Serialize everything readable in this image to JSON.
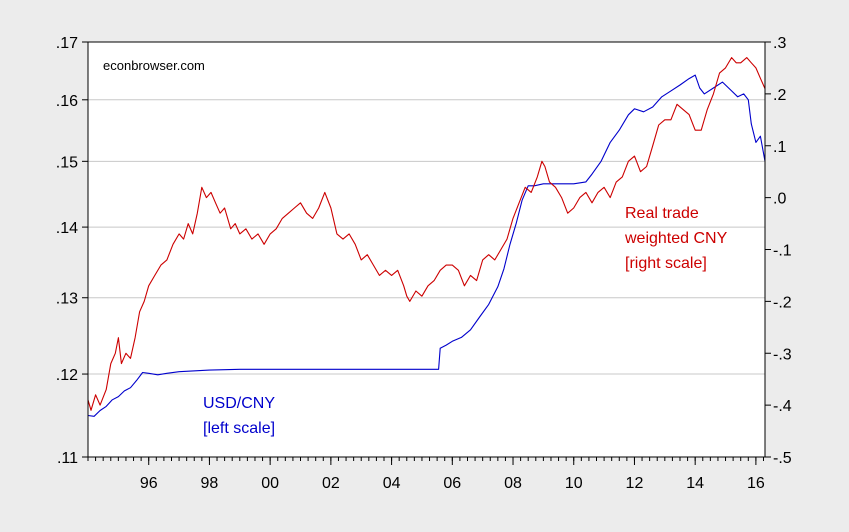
{
  "chart_data": {
    "type": "line",
    "watermark": "econbrowser.com",
    "x_range": [
      1994.0,
      2016.3
    ],
    "x_ticks": [
      {
        "value": 1996,
        "label": "96"
      },
      {
        "value": 1998,
        "label": "98"
      },
      {
        "value": 2000,
        "label": "00"
      },
      {
        "value": 2002,
        "label": "02"
      },
      {
        "value": 2004,
        "label": "04"
      },
      {
        "value": 2006,
        "label": "06"
      },
      {
        "value": 2008,
        "label": "08"
      },
      {
        "value": 2010,
        "label": "10"
      },
      {
        "value": 2012,
        "label": "12"
      },
      {
        "value": 2014,
        "label": "14"
      },
      {
        "value": 2016,
        "label": "16"
      }
    ],
    "left_axis": {
      "scale": "log",
      "range": [
        0.11,
        0.17
      ],
      "ticks": [
        {
          "value": 0.11,
          "label": ".11"
        },
        {
          "value": 0.12,
          "label": ".12"
        },
        {
          "value": 0.13,
          "label": ".13"
        },
        {
          "value": 0.14,
          "label": ".14"
        },
        {
          "value": 0.15,
          "label": ".15"
        },
        {
          "value": 0.16,
          "label": ".16"
        },
        {
          "value": 0.17,
          "label": ".17"
        }
      ]
    },
    "right_axis": {
      "scale": "linear",
      "range": [
        -0.5,
        0.3
      ],
      "ticks": [
        {
          "value": 0.3,
          "label": ".3"
        },
        {
          "value": 0.2,
          "label": ".2"
        },
        {
          "value": 0.1,
          "label": ".1"
        },
        {
          "value": 0.0,
          "label": ".0"
        },
        {
          "value": -0.1,
          "label": "-.1"
        },
        {
          "value": -0.2,
          "label": "-.2"
        },
        {
          "value": -0.3,
          "label": "-.3"
        },
        {
          "value": -0.4,
          "label": "-.4"
        },
        {
          "value": -0.5,
          "label": "-.5"
        }
      ]
    },
    "grid": true,
    "series": [
      {
        "name": "USD/CNY",
        "annotation": [
          "USD/CNY",
          "[left scale]"
        ],
        "axis": "left",
        "color": "#0000cc",
        "points": [
          [
            1994.0,
            0.1149
          ],
          [
            1994.2,
            0.1148
          ],
          [
            1994.4,
            0.1155
          ],
          [
            1994.6,
            0.116
          ],
          [
            1994.8,
            0.1168
          ],
          [
            1995.0,
            0.1172
          ],
          [
            1995.2,
            0.1179
          ],
          [
            1995.4,
            0.1183
          ],
          [
            1995.6,
            0.1192
          ],
          [
            1995.8,
            0.1202
          ],
          [
            1996.0,
            0.1201
          ],
          [
            1996.3,
            0.1199
          ],
          [
            1996.6,
            0.1201
          ],
          [
            1997.0,
            0.1203
          ],
          [
            1998.0,
            0.1205
          ],
          [
            1999.0,
            0.1206
          ],
          [
            2000.0,
            0.1206
          ],
          [
            2001.0,
            0.1206
          ],
          [
            2002.0,
            0.1206
          ],
          [
            2003.0,
            0.1206
          ],
          [
            2004.0,
            0.1206
          ],
          [
            2005.0,
            0.1206
          ],
          [
            2005.55,
            0.1206
          ],
          [
            2005.6,
            0.1233
          ],
          [
            2005.8,
            0.1237
          ],
          [
            2006.0,
            0.1242
          ],
          [
            2006.3,
            0.1247
          ],
          [
            2006.6,
            0.1257
          ],
          [
            2006.9,
            0.1274
          ],
          [
            2007.2,
            0.1291
          ],
          [
            2007.5,
            0.1315
          ],
          [
            2007.7,
            0.134
          ],
          [
            2007.9,
            0.1375
          ],
          [
            2008.1,
            0.1405
          ],
          [
            2008.3,
            0.144
          ],
          [
            2008.5,
            0.1462
          ],
          [
            2008.7,
            0.1462
          ],
          [
            2009.0,
            0.1465
          ],
          [
            2010.0,
            0.1465
          ],
          [
            2010.4,
            0.1468
          ],
          [
            2010.6,
            0.148
          ],
          [
            2010.9,
            0.15
          ],
          [
            2011.2,
            0.153
          ],
          [
            2011.5,
            0.155
          ],
          [
            2011.8,
            0.1575
          ],
          [
            2012.0,
            0.1585
          ],
          [
            2012.3,
            0.158
          ],
          [
            2012.6,
            0.1588
          ],
          [
            2012.9,
            0.1605
          ],
          [
            2013.2,
            0.1615
          ],
          [
            2013.5,
            0.1625
          ],
          [
            2013.8,
            0.1636
          ],
          [
            2014.0,
            0.1642
          ],
          [
            2014.15,
            0.162
          ],
          [
            2014.3,
            0.161
          ],
          [
            2014.6,
            0.162
          ],
          [
            2014.9,
            0.163
          ],
          [
            2015.2,
            0.1615
          ],
          [
            2015.4,
            0.1605
          ],
          [
            2015.6,
            0.161
          ],
          [
            2015.75,
            0.16
          ],
          [
            2015.85,
            0.156
          ],
          [
            2016.0,
            0.153
          ],
          [
            2016.15,
            0.154
          ],
          [
            2016.3,
            0.15
          ]
        ]
      },
      {
        "name": "Real trade weighted CNY",
        "annotation": [
          "Real trade",
          "weighted CNY",
          "[right scale]"
        ],
        "axis": "right",
        "color": "#cc0000",
        "points": [
          [
            1994.0,
            -0.39
          ],
          [
            1994.1,
            -0.41
          ],
          [
            1994.25,
            -0.38
          ],
          [
            1994.4,
            -0.4
          ],
          [
            1994.6,
            -0.37
          ],
          [
            1994.75,
            -0.32
          ],
          [
            1994.9,
            -0.3
          ],
          [
            1995.0,
            -0.27
          ],
          [
            1995.1,
            -0.32
          ],
          [
            1995.25,
            -0.3
          ],
          [
            1995.4,
            -0.31
          ],
          [
            1995.55,
            -0.27
          ],
          [
            1995.7,
            -0.22
          ],
          [
            1995.85,
            -0.2
          ],
          [
            1996.0,
            -0.17
          ],
          [
            1996.2,
            -0.15
          ],
          [
            1996.4,
            -0.13
          ],
          [
            1996.6,
            -0.12
          ],
          [
            1996.8,
            -0.09
          ],
          [
            1997.0,
            -0.07
          ],
          [
            1997.15,
            -0.08
          ],
          [
            1997.3,
            -0.05
          ],
          [
            1997.45,
            -0.07
          ],
          [
            1997.6,
            -0.03
          ],
          [
            1997.75,
            0.02
          ],
          [
            1997.9,
            0.0
          ],
          [
            1998.05,
            0.01
          ],
          [
            1998.2,
            -0.01
          ],
          [
            1998.35,
            -0.03
          ],
          [
            1998.5,
            -0.02
          ],
          [
            1998.7,
            -0.06
          ],
          [
            1998.85,
            -0.05
          ],
          [
            1999.0,
            -0.07
          ],
          [
            1999.2,
            -0.06
          ],
          [
            1999.4,
            -0.08
          ],
          [
            1999.6,
            -0.07
          ],
          [
            1999.8,
            -0.09
          ],
          [
            2000.0,
            -0.07
          ],
          [
            2000.2,
            -0.06
          ],
          [
            2000.4,
            -0.04
          ],
          [
            2000.6,
            -0.03
          ],
          [
            2000.8,
            -0.02
          ],
          [
            2001.0,
            -0.01
          ],
          [
            2001.2,
            -0.03
          ],
          [
            2001.4,
            -0.04
          ],
          [
            2001.6,
            -0.02
          ],
          [
            2001.8,
            0.01
          ],
          [
            2002.0,
            -0.02
          ],
          [
            2002.2,
            -0.07
          ],
          [
            2002.4,
            -0.08
          ],
          [
            2002.6,
            -0.07
          ],
          [
            2002.8,
            -0.09
          ],
          [
            2003.0,
            -0.12
          ],
          [
            2003.2,
            -0.11
          ],
          [
            2003.4,
            -0.13
          ],
          [
            2003.6,
            -0.15
          ],
          [
            2003.8,
            -0.14
          ],
          [
            2004.0,
            -0.15
          ],
          [
            2004.2,
            -0.14
          ],
          [
            2004.4,
            -0.17
          ],
          [
            2004.5,
            -0.19
          ],
          [
            2004.6,
            -0.2
          ],
          [
            2004.8,
            -0.18
          ],
          [
            2005.0,
            -0.19
          ],
          [
            2005.2,
            -0.17
          ],
          [
            2005.4,
            -0.16
          ],
          [
            2005.6,
            -0.14
          ],
          [
            2005.8,
            -0.13
          ],
          [
            2006.0,
            -0.13
          ],
          [
            2006.2,
            -0.14
          ],
          [
            2006.4,
            -0.17
          ],
          [
            2006.6,
            -0.15
          ],
          [
            2006.8,
            -0.16
          ],
          [
            2007.0,
            -0.12
          ],
          [
            2007.2,
            -0.11
          ],
          [
            2007.4,
            -0.12
          ],
          [
            2007.6,
            -0.1
          ],
          [
            2007.8,
            -0.08
          ],
          [
            2008.0,
            -0.04
          ],
          [
            2008.2,
            -0.01
          ],
          [
            2008.4,
            0.02
          ],
          [
            2008.6,
            0.01
          ],
          [
            2008.8,
            0.04
          ],
          [
            2008.95,
            0.07
          ],
          [
            2009.05,
            0.06
          ],
          [
            2009.2,
            0.03
          ],
          [
            2009.4,
            0.02
          ],
          [
            2009.6,
            0.0
          ],
          [
            2009.8,
            -0.03
          ],
          [
            2010.0,
            -0.02
          ],
          [
            2010.2,
            0.0
          ],
          [
            2010.4,
            0.01
          ],
          [
            2010.6,
            -0.01
          ],
          [
            2010.8,
            0.01
          ],
          [
            2011.0,
            0.02
          ],
          [
            2011.2,
            0.0
          ],
          [
            2011.4,
            0.03
          ],
          [
            2011.6,
            0.04
          ],
          [
            2011.8,
            0.07
          ],
          [
            2012.0,
            0.08
          ],
          [
            2012.2,
            0.05
          ],
          [
            2012.4,
            0.06
          ],
          [
            2012.6,
            0.1
          ],
          [
            2012.8,
            0.14
          ],
          [
            2013.0,
            0.15
          ],
          [
            2013.2,
            0.15
          ],
          [
            2013.4,
            0.18
          ],
          [
            2013.6,
            0.17
          ],
          [
            2013.8,
            0.16
          ],
          [
            2014.0,
            0.13
          ],
          [
            2014.2,
            0.13
          ],
          [
            2014.4,
            0.17
          ],
          [
            2014.6,
            0.2
          ],
          [
            2014.8,
            0.24
          ],
          [
            2015.0,
            0.25
          ],
          [
            2015.2,
            0.27
          ],
          [
            2015.35,
            0.26
          ],
          [
            2015.5,
            0.26
          ],
          [
            2015.7,
            0.27
          ],
          [
            2015.85,
            0.26
          ],
          [
            2016.0,
            0.25
          ],
          [
            2016.15,
            0.23
          ],
          [
            2016.3,
            0.21
          ]
        ]
      }
    ]
  }
}
